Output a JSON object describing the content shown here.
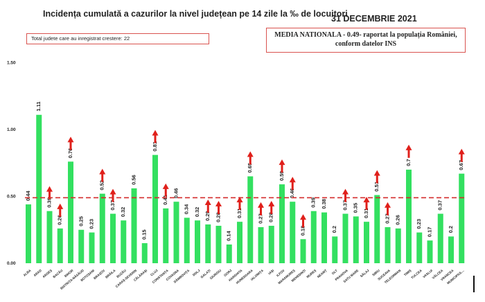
{
  "header": {
    "title": "Incidența cumulată a cazurilor la nivel județean pe 14 zile la ‰ de locuitori",
    "date": "31 DECEMBRIE 2021"
  },
  "info_box": {
    "text": "Total judete care au inregistrat crestere: 22"
  },
  "national_box": {
    "line1": "MEDIA NATIONALA - 0.49-  raportat la populația României,",
    "line2": "conform datelor INS"
  },
  "colors": {
    "bar": "#33e060",
    "arrow": "#e0201b",
    "mean_line": "#d42a2a",
    "text": "#222222"
  },
  "chart_data": {
    "type": "bar",
    "categories": [
      "ALBA",
      "ARAD",
      "ARGEȘ",
      "BACĂU",
      "BIHOR",
      "BISTRIȚA-NĂSĂUD",
      "BOTOȘANI",
      "BRAȘOV",
      "BRĂILA",
      "BUZĂU",
      "CARAȘ-SEVERIN",
      "CĂLĂRAȘI",
      "CLUJ",
      "CONSTANȚA",
      "COVASNA",
      "DÂMBOVIȚA",
      "DOLJ",
      "GALAȚI",
      "GIURGIU",
      "GORJ",
      "HARGHITA",
      "HUNEDOARA",
      "IALOMIȚA",
      "IAȘI",
      "ILFOV",
      "MARAMUREȘ",
      "MEHEDINȚI",
      "MUREȘ",
      "NEAMȚ",
      "OLT",
      "PRAHOVA",
      "SATU MARE",
      "SĂLAJ",
      "SIBIU",
      "SUCEAVA",
      "TELEORMAN",
      "TIMIȘ",
      "TULCEA",
      "VASLUI",
      "VÂLCEA",
      "VRANCEA",
      "MUNICIPIUL..."
    ],
    "values": [
      0.44,
      1.11,
      0.39,
      0.26,
      0.76,
      0.25,
      0.23,
      0.52,
      0.37,
      0.32,
      0.56,
      0.15,
      0.81,
      0.41,
      0.46,
      0.34,
      0.32,
      0.29,
      0.28,
      0.14,
      0.31,
      0.65,
      0.27,
      0.28,
      0.59,
      0.46,
      0.18,
      0.39,
      0.38,
      0.2,
      0.37,
      0.35,
      0.31,
      0.51,
      0.27,
      0.26,
      0.7,
      0.23,
      0.17,
      0.37,
      0.2,
      0.67
    ],
    "value_labels": [
      "0.44",
      "1.11",
      "0.39",
      "0.26",
      "0.76",
      "0.25",
      "0.23",
      "0.52",
      "0.37",
      "0.32",
      "0.56",
      "0.15",
      "0.81",
      "0.41",
      "0.46",
      "0.34",
      "0.32",
      "0.29",
      "0.28",
      "0.14",
      "0.31",
      "0.65",
      "0.27",
      "0.28",
      "0.59",
      "0.46",
      "0.18",
      "0.39",
      "0.38",
      "0.2",
      "0.37",
      "0.35",
      "0.31",
      "0.51",
      "0.27",
      "0.26",
      "0.7",
      "0.23",
      "0.17",
      "0.37",
      "0.2",
      "0.67"
    ],
    "increase": [
      false,
      false,
      true,
      true,
      true,
      false,
      false,
      true,
      true,
      false,
      false,
      false,
      true,
      true,
      false,
      false,
      false,
      true,
      true,
      false,
      true,
      true,
      true,
      true,
      true,
      true,
      true,
      false,
      false,
      false,
      true,
      false,
      true,
      true,
      true,
      false,
      true,
      false,
      false,
      false,
      false,
      true
    ],
    "mean": 0.49,
    "ylim": [
      0,
      1.5
    ],
    "yticks": [
      "0.00",
      "0.50",
      "1.00",
      "1.50"
    ],
    "ytick_values": [
      0,
      0.5,
      1.0,
      1.5
    ],
    "grid": false,
    "legend": "none"
  }
}
